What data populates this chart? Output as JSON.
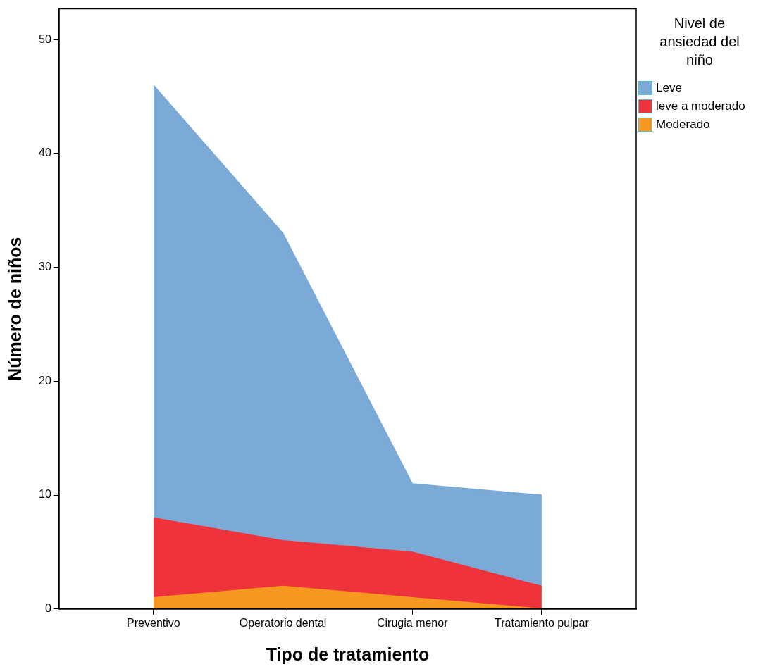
{
  "chart_data": {
    "type": "area",
    "stacked": true,
    "xlabel": "Tipo de tratamiento",
    "ylabel": "Número de niños",
    "legend_title": "Nivel de ansiedad del niño",
    "categories": [
      "Preventivo",
      "Operatorio dental",
      "Cirugia menor",
      "Tratamiento pulpar"
    ],
    "series": [
      {
        "name": "Moderado",
        "color": "#f6971f",
        "values": [
          1,
          2,
          1,
          0
        ]
      },
      {
        "name": "leve a moderado",
        "color": "#ef333c",
        "values": [
          7,
          4,
          4,
          2
        ]
      },
      {
        "name": "Leve",
        "color": "#7aaad5",
        "values": [
          38,
          27,
          6,
          8
        ]
      }
    ],
    "ylim": [
      0,
      52.7
    ],
    "yticks": [
      0,
      10,
      20,
      30,
      40,
      50
    ],
    "grid": false,
    "legend": "right"
  }
}
